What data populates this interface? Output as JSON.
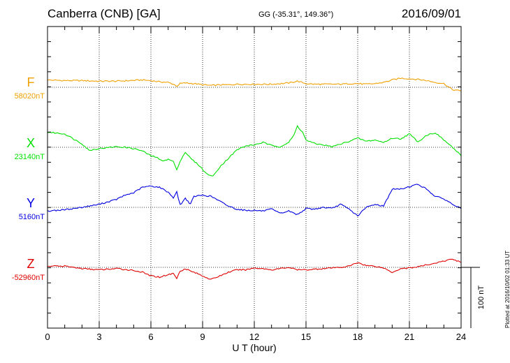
{
  "header": {
    "station": "Canberra (CNB)  [GA]",
    "coords": "GG (-35.31°, 149.36°)",
    "date": "2016/09/01"
  },
  "footer": {
    "plotted": "Plotted at 2016/10/02 01:33 UT"
  },
  "chart_data": {
    "type": "line",
    "xlabel": "U T (hour)",
    "xlim": [
      0,
      24
    ],
    "xticks": [
      "0",
      "3",
      "6",
      "9",
      "12",
      "15",
      "18",
      "21",
      "24"
    ],
    "scale_bar": "100 nT",
    "grid": true,
    "series": [
      {
        "name": "F",
        "baseline": "58020nT",
        "color": "#f0a000",
        "points": [
          [
            0,
            12
          ],
          [
            1,
            11
          ],
          [
            2,
            11
          ],
          [
            3,
            10
          ],
          [
            4,
            10
          ],
          [
            4.8,
            11
          ],
          [
            5.5,
            12
          ],
          [
            6,
            11
          ],
          [
            6.5,
            9
          ],
          [
            7,
            8
          ],
          [
            7.3,
            5
          ],
          [
            7.5,
            2
          ],
          [
            7.7,
            6
          ],
          [
            8,
            7
          ],
          [
            8.5,
            6
          ],
          [
            9,
            4
          ],
          [
            9.5,
            3
          ],
          [
            10,
            4
          ],
          [
            10.5,
            4
          ],
          [
            11,
            5
          ],
          [
            12,
            5
          ],
          [
            12.5,
            5
          ],
          [
            13,
            5
          ],
          [
            13.5,
            6
          ],
          [
            14,
            7
          ],
          [
            14.5,
            10
          ],
          [
            15,
            6
          ],
          [
            15.5,
            5
          ],
          [
            16,
            5
          ],
          [
            17,
            5
          ],
          [
            17.5,
            6
          ],
          [
            18,
            6
          ],
          [
            18.5,
            5
          ],
          [
            19,
            6
          ],
          [
            19.5,
            8
          ],
          [
            20,
            12
          ],
          [
            20.5,
            15
          ],
          [
            21,
            14
          ],
          [
            21.5,
            13
          ],
          [
            22,
            11
          ],
          [
            22.5,
            8
          ],
          [
            23,
            6
          ],
          [
            23.5,
            -4
          ],
          [
            24,
            -6
          ]
        ]
      },
      {
        "name": "X",
        "baseline": "23140nT",
        "color": "#00e000",
        "points": [
          [
            0,
            25
          ],
          [
            1,
            22
          ],
          [
            1.5,
            14
          ],
          [
            2,
            6
          ],
          [
            2.4,
            -5
          ],
          [
            3,
            -2
          ],
          [
            4,
            1
          ],
          [
            4.5,
            0
          ],
          [
            5,
            -2
          ],
          [
            5.5,
            -6
          ],
          [
            6,
            -14
          ],
          [
            6.3,
            -16
          ],
          [
            6.6,
            -22
          ],
          [
            7,
            -20
          ],
          [
            7.3,
            -23
          ],
          [
            7.5,
            -38
          ],
          [
            7.7,
            -22
          ],
          [
            8,
            -8
          ],
          [
            8.3,
            -18
          ],
          [
            8.8,
            -30
          ],
          [
            9.2,
            -43
          ],
          [
            9.6,
            -48
          ],
          [
            10,
            -32
          ],
          [
            10.5,
            -18
          ],
          [
            11,
            -4
          ],
          [
            11.5,
            2
          ],
          [
            12,
            4
          ],
          [
            12.5,
            8
          ],
          [
            13,
            3
          ],
          [
            13.5,
            1
          ],
          [
            14,
            8
          ],
          [
            14.3,
            20
          ],
          [
            14.5,
            35
          ],
          [
            14.8,
            25
          ],
          [
            15,
            12
          ],
          [
            15.5,
            6
          ],
          [
            16,
            4
          ],
          [
            16.5,
            1
          ],
          [
            17,
            5
          ],
          [
            17.5,
            10
          ],
          [
            18,
            15
          ],
          [
            18.5,
            10
          ],
          [
            19,
            12
          ],
          [
            19.5,
            8
          ],
          [
            20,
            15
          ],
          [
            20.5,
            14
          ],
          [
            21,
            22
          ],
          [
            21.5,
            9
          ],
          [
            22,
            20
          ],
          [
            22.5,
            24
          ],
          [
            23,
            12
          ],
          [
            23.5,
            0
          ],
          [
            24,
            -14
          ]
        ]
      },
      {
        "name": "Y",
        "baseline": "5160nT",
        "color": "#0000e0",
        "points": [
          [
            0,
            -6
          ],
          [
            1,
            -4
          ],
          [
            2,
            0
          ],
          [
            3,
            5
          ],
          [
            4,
            13
          ],
          [
            4.5,
            20
          ],
          [
            5,
            24
          ],
          [
            5.5,
            33
          ],
          [
            6,
            35
          ],
          [
            6.5,
            33
          ],
          [
            7,
            25
          ],
          [
            7.3,
            16
          ],
          [
            7.5,
            25
          ],
          [
            7.7,
            4
          ],
          [
            8,
            15
          ],
          [
            8.3,
            5
          ],
          [
            8.5,
            18
          ],
          [
            9,
            20
          ],
          [
            9.5,
            18
          ],
          [
            10,
            10
          ],
          [
            10.5,
            2
          ],
          [
            11,
            -3
          ],
          [
            11.5,
            -5
          ],
          [
            12,
            -5
          ],
          [
            12.5,
            -6
          ],
          [
            13,
            -3
          ],
          [
            13.5,
            -10
          ],
          [
            14,
            -6
          ],
          [
            14.5,
            -12
          ],
          [
            15,
            -2
          ],
          [
            15.5,
            -3
          ],
          [
            16,
            0
          ],
          [
            16.5,
            -2
          ],
          [
            17,
            5
          ],
          [
            17.5,
            -3
          ],
          [
            18,
            -14
          ],
          [
            18.5,
            0
          ],
          [
            19,
            5
          ],
          [
            19.5,
            2
          ],
          [
            20,
            30
          ],
          [
            20.5,
            30
          ],
          [
            21,
            34
          ],
          [
            21.5,
            38
          ],
          [
            22,
            30
          ],
          [
            22.5,
            18
          ],
          [
            23,
            14
          ],
          [
            23.5,
            5
          ],
          [
            24,
            -2
          ]
        ]
      },
      {
        "name": "Z",
        "baseline": "-52960nT",
        "color": "#e00000",
        "points": [
          [
            0,
            2
          ],
          [
            1,
            2
          ],
          [
            2,
            -2
          ],
          [
            3,
            -4
          ],
          [
            4,
            -2
          ],
          [
            5,
            -5
          ],
          [
            5.5,
            -8
          ],
          [
            6,
            -14
          ],
          [
            6.5,
            -16
          ],
          [
            7,
            -12
          ],
          [
            7.3,
            -10
          ],
          [
            7.5,
            -18
          ],
          [
            7.7,
            -6
          ],
          [
            8,
            -2
          ],
          [
            8.3,
            -6
          ],
          [
            8.5,
            -8
          ],
          [
            9,
            -14
          ],
          [
            9.5,
            -20
          ],
          [
            10,
            -14
          ],
          [
            10.5,
            -8
          ],
          [
            11,
            -4
          ],
          [
            11.5,
            -4
          ],
          [
            12,
            -1
          ],
          [
            12.5,
            -2
          ],
          [
            13,
            -4
          ],
          [
            13.5,
            -2
          ],
          [
            14,
            0
          ],
          [
            14.5,
            -4
          ],
          [
            15,
            -4
          ],
          [
            16,
            -2
          ],
          [
            17,
            0
          ],
          [
            17.5,
            2
          ],
          [
            18,
            8
          ],
          [
            18.5,
            3
          ],
          [
            19,
            2
          ],
          [
            19.5,
            -1
          ],
          [
            20,
            -8
          ],
          [
            20.5,
            -2
          ],
          [
            21,
            -1
          ],
          [
            21.5,
            1
          ],
          [
            22,
            4
          ],
          [
            23,
            10
          ],
          [
            23.5,
            14
          ],
          [
            24,
            8
          ]
        ]
      }
    ]
  }
}
